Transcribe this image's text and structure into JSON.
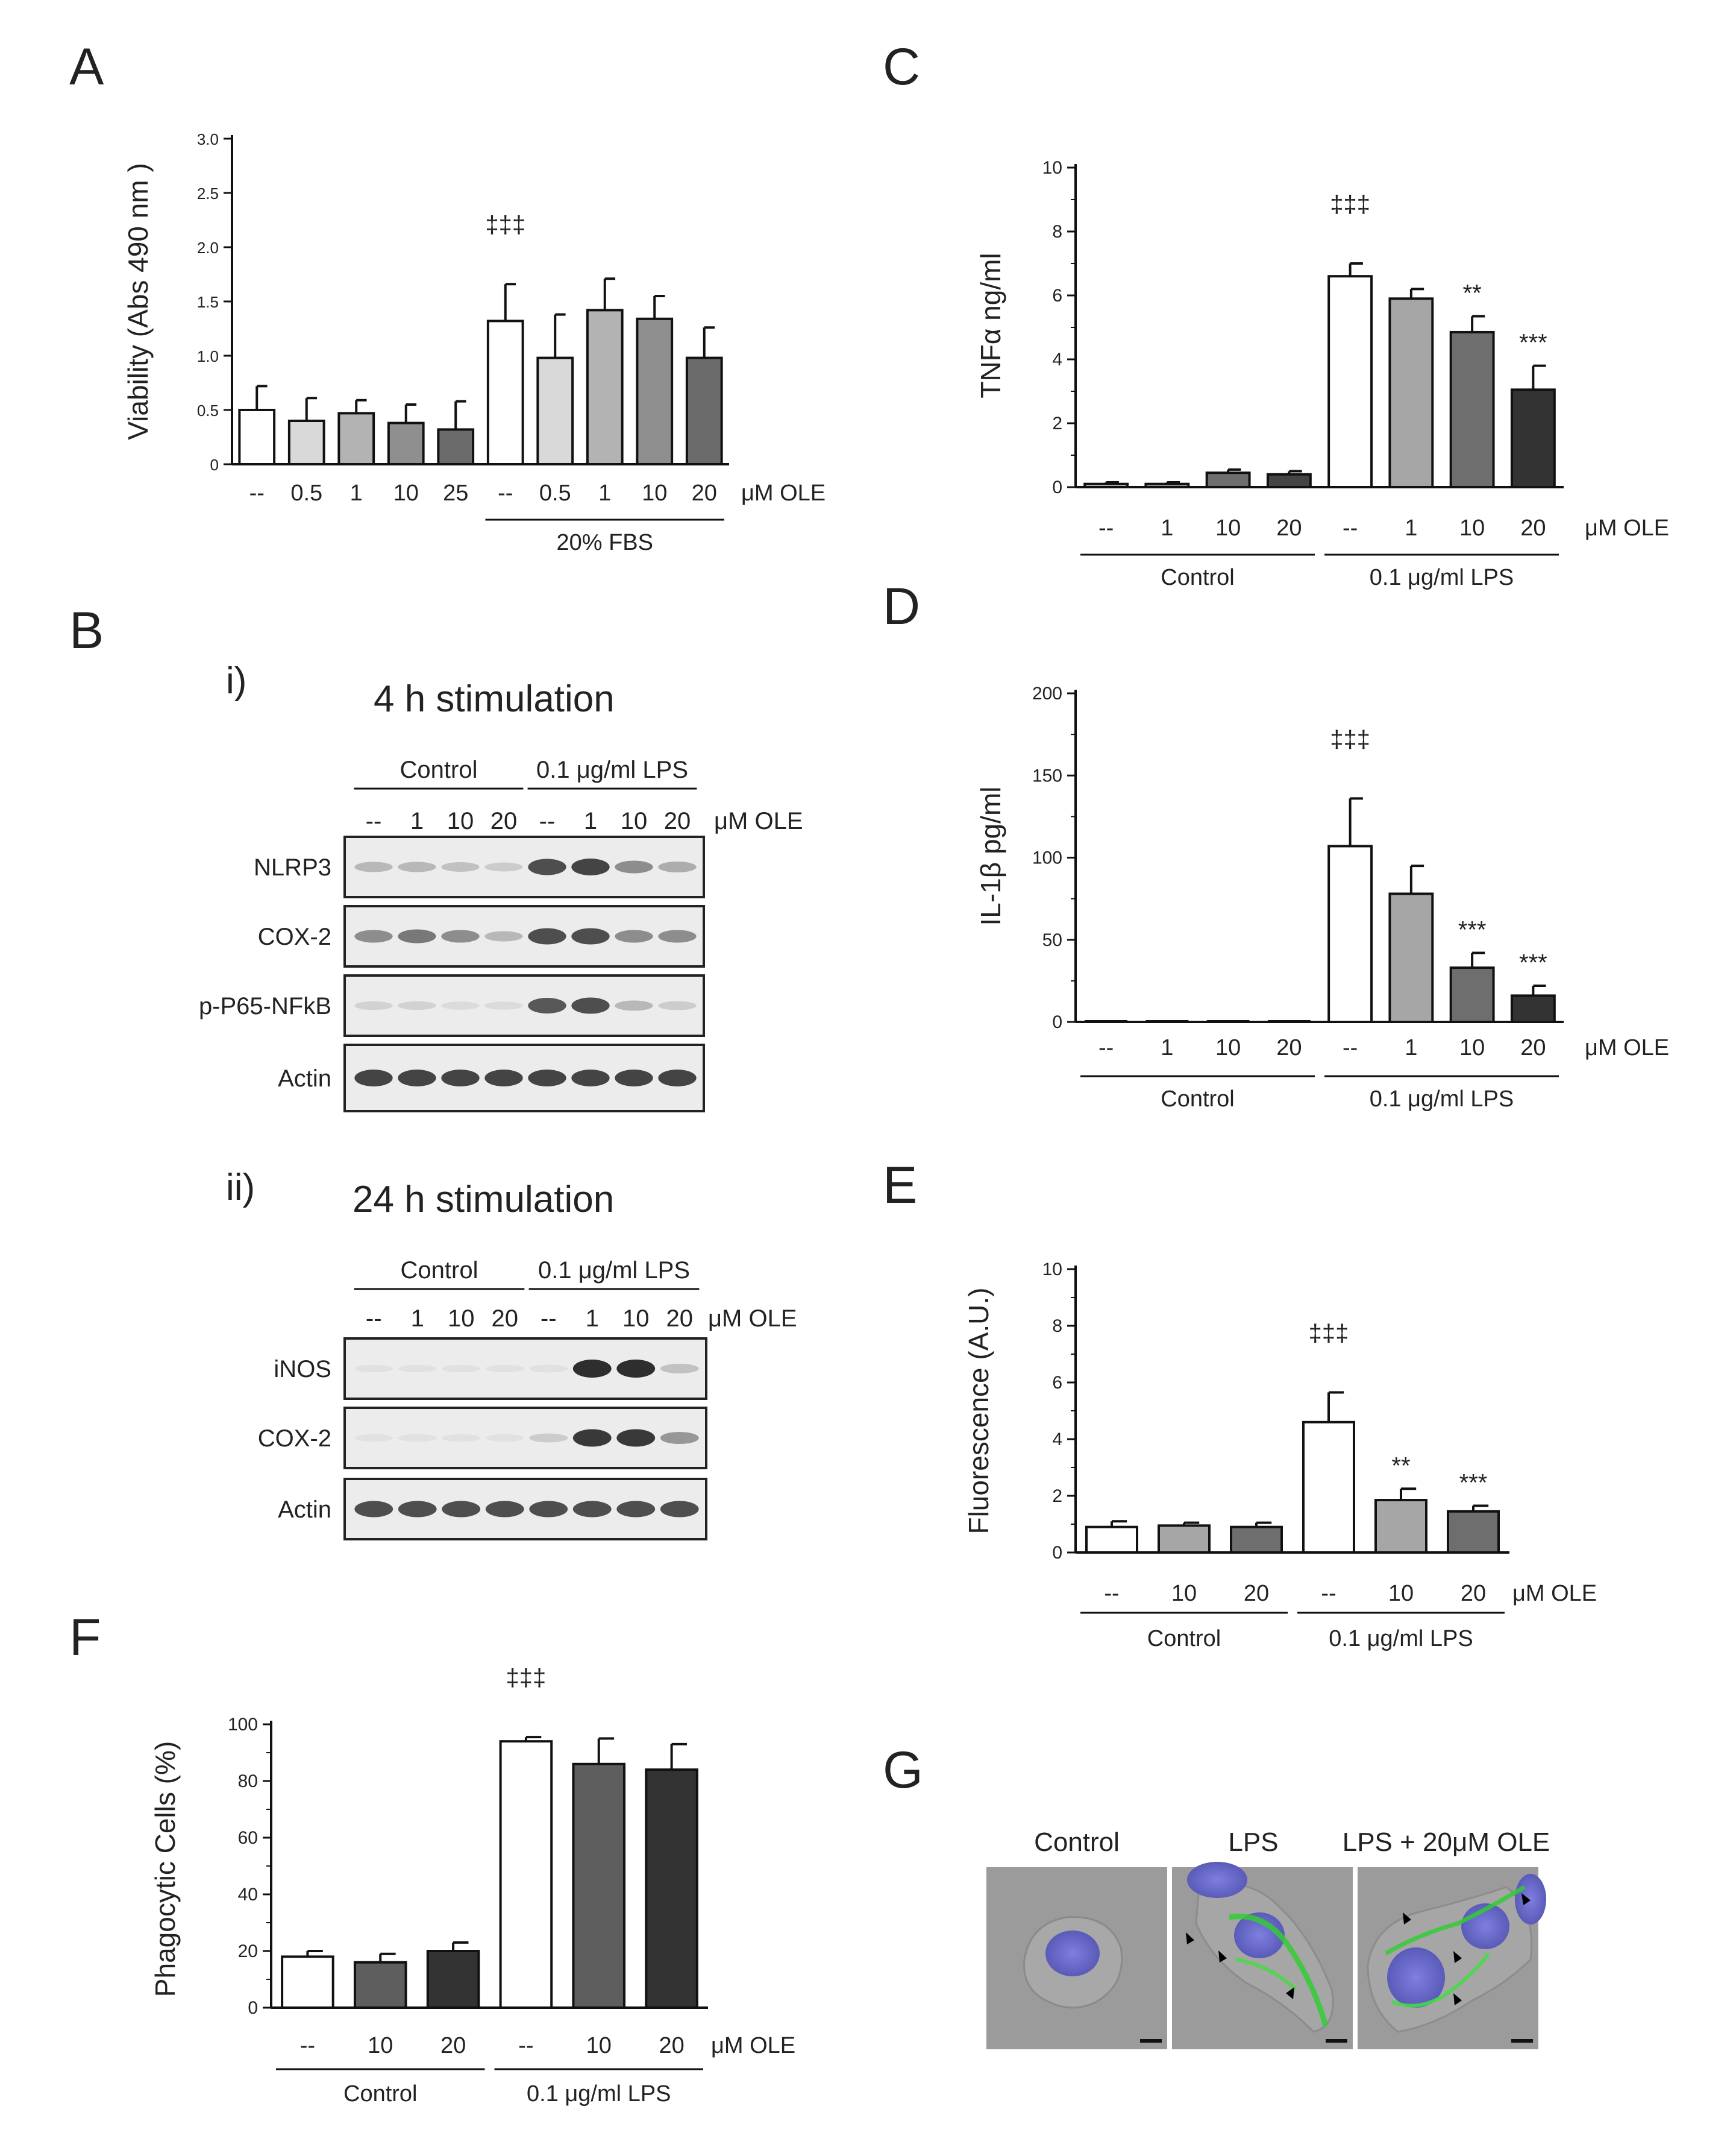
{
  "chart_data": [
    {
      "panel": "A",
      "type": "bar",
      "ylabel": "Viability (Abs 490 nm )",
      "ylim": [
        0,
        3.0
      ],
      "ticks": [
        "0",
        "0.5",
        "1.0",
        "1.5",
        "2.0",
        "2.5",
        "3.0"
      ],
      "categories": [
        "--",
        "0.5",
        "1",
        "10",
        "25",
        "--",
        "0.5",
        "1",
        "10",
        "20"
      ],
      "values": [
        0.5,
        0.4,
        0.47,
        0.38,
        0.32,
        1.32,
        0.98,
        1.42,
        1.34,
        0.98
      ],
      "errors": [
        0.22,
        0.21,
        0.12,
        0.17,
        0.26,
        0.34,
        0.4,
        0.29,
        0.21,
        0.28
      ],
      "colors": [
        "#ffffff",
        "#d9d9d9",
        "#b3b3b3",
        "#8f8f8f",
        "#6b6b6b",
        "#ffffff",
        "#d9d9d9",
        "#b3b3b3",
        "#8f8f8f",
        "#6b6b6b"
      ],
      "unit": "μM OLE",
      "groups": [
        {
          "label": "20% FBS"
        }
      ],
      "annotations": [
        {
          "index": 5,
          "text": "‡‡‡"
        }
      ]
    },
    {
      "panel": "C",
      "type": "bar",
      "ylabel": "TNFα ng/ml",
      "ylim": [
        0,
        10
      ],
      "ticks": [
        "0",
        "2",
        "4",
        "6",
        "8",
        "10"
      ],
      "categories": [
        "--",
        "1",
        "10",
        "20",
        "--",
        "1",
        "10",
        "20"
      ],
      "values": [
        0.1,
        0.1,
        0.45,
        0.4,
        6.6,
        5.9,
        4.85,
        3.05
      ],
      "errors": [
        0.05,
        0.05,
        0.1,
        0.1,
        0.4,
        0.3,
        0.5,
        0.75
      ],
      "colors": [
        "#c8c8c8",
        "#a6a6a6",
        "#6e6e6e",
        "#444444",
        "#ffffff",
        "#a6a6a6",
        "#6e6e6e",
        "#333333"
      ],
      "unit": "μM OLE",
      "groups": [
        {
          "label": "Control"
        },
        {
          "label": "0.1 μg/ml LPS"
        }
      ],
      "annotations": [
        {
          "index": 4,
          "text": "‡‡‡"
        },
        {
          "index": 6,
          "text": "**"
        },
        {
          "index": 7,
          "text": "***"
        }
      ]
    },
    {
      "panel": "D",
      "type": "bar",
      "ylabel": "IL-1β pg/ml",
      "ylim": [
        0,
        200
      ],
      "ticks": [
        "0",
        "50",
        "100",
        "150",
        "200"
      ],
      "categories": [
        "--",
        "1",
        "10",
        "20",
        "--",
        "1",
        "10",
        "20"
      ],
      "values": [
        0,
        0,
        0,
        0,
        107,
        78,
        33,
        16
      ],
      "errors": [
        0,
        0,
        0,
        0,
        29,
        17,
        9,
        6
      ],
      "colors": [
        "#ffffff",
        "#a6a6a6",
        "#6e6e6e",
        "#333333",
        "#ffffff",
        "#a6a6a6",
        "#6e6e6e",
        "#333333"
      ],
      "unit": "μM OLE",
      "groups": [
        {
          "label": "Control"
        },
        {
          "label": "0.1 μg/ml LPS"
        }
      ],
      "annotations": [
        {
          "index": 4,
          "text": "‡‡‡"
        },
        {
          "index": 6,
          "text": "***"
        },
        {
          "index": 7,
          "text": "***"
        }
      ]
    },
    {
      "panel": "E",
      "type": "bar",
      "ylabel": "Fluorescence (A.U.)",
      "ylim": [
        0,
        10
      ],
      "ticks": [
        "0",
        "2",
        "4",
        "6",
        "8",
        "10"
      ],
      "categories": [
        "--",
        "10",
        "20",
        "--",
        "10",
        "20"
      ],
      "values": [
        0.9,
        0.95,
        0.9,
        4.6,
        1.85,
        1.45
      ],
      "errors": [
        0.2,
        0.1,
        0.15,
        1.05,
        0.4,
        0.2
      ],
      "colors": [
        "#ffffff",
        "#a6a6a6",
        "#6e6e6e",
        "#ffffff",
        "#a6a6a6",
        "#6e6e6e"
      ],
      "unit": "μM OLE",
      "groups": [
        {
          "label": "Control"
        },
        {
          "label": "0.1 μg/ml LPS"
        }
      ],
      "annotations": [
        {
          "index": 3,
          "text": "‡‡‡"
        },
        {
          "index": 4,
          "text": "**"
        },
        {
          "index": 5,
          "text": "***"
        }
      ]
    },
    {
      "panel": "F",
      "type": "bar",
      "ylabel": "Phagocytic Cells (%)",
      "ylim": [
        0,
        100
      ],
      "ticks": [
        "0",
        "20",
        "40",
        "60",
        "80",
        "100"
      ],
      "categories": [
        "--",
        "10",
        "20",
        "--",
        "10",
        "20"
      ],
      "values": [
        18,
        16,
        20,
        94,
        86,
        84
      ],
      "errors": [
        2,
        3,
        3,
        1.5,
        9,
        9
      ],
      "colors": [
        "#ffffff",
        "#5e5e5e",
        "#333333",
        "#ffffff",
        "#5e5e5e",
        "#333333"
      ],
      "unit": "μM OLE",
      "groups": [
        {
          "label": "Control"
        },
        {
          "label": "0.1 μg/ml LPS"
        }
      ],
      "annotations": [
        {
          "index": 3,
          "text": "‡‡‡"
        }
      ]
    }
  ],
  "panel_letters": {
    "a": "A",
    "b": "B",
    "c": "C",
    "d": "D",
    "e": "E",
    "f": "F",
    "g": "G"
  },
  "blots": [
    {
      "id": "i",
      "roman": "i)",
      "title": "4 h stimulation",
      "control_label": "Control",
      "lps_label": "0.1 μg/ml LPS",
      "lanes": [
        "--",
        "1",
        "10",
        "20",
        "--",
        "1",
        "10",
        "20"
      ],
      "unit": "μM OLE",
      "rows": [
        {
          "label": "NLRP3",
          "intensity": [
            0.25,
            0.25,
            0.2,
            0.15,
            0.75,
            0.8,
            0.45,
            0.3
          ]
        },
        {
          "label": "COX-2",
          "intensity": [
            0.45,
            0.55,
            0.45,
            0.25,
            0.75,
            0.75,
            0.45,
            0.45
          ]
        },
        {
          "label": "p-P65-NFkB",
          "intensity": [
            0.12,
            0.12,
            0.08,
            0.08,
            0.7,
            0.75,
            0.25,
            0.15
          ]
        },
        {
          "label": "Actin",
          "intensity": [
            0.8,
            0.8,
            0.8,
            0.8,
            0.8,
            0.8,
            0.8,
            0.8
          ]
        }
      ]
    },
    {
      "id": "ii",
      "roman": "ii)",
      "title": "24 h stimulation",
      "control_label": "Control",
      "lps_label": "0.1 μg/ml LPS",
      "lanes": [
        "--",
        "1",
        "10",
        "20",
        "--",
        "1",
        "10",
        "20"
      ],
      "unit": "μM OLE",
      "rows": [
        {
          "label": "iNOS",
          "intensity": [
            0.02,
            0.02,
            0.02,
            0.02,
            0.05,
            0.9,
            0.9,
            0.2
          ]
        },
        {
          "label": "COX-2",
          "intensity": [
            0.02,
            0.02,
            0.02,
            0.02,
            0.15,
            0.85,
            0.85,
            0.4
          ]
        },
        {
          "label": "Actin",
          "intensity": [
            0.75,
            0.75,
            0.75,
            0.75,
            0.75,
            0.75,
            0.75,
            0.75
          ]
        }
      ]
    }
  ],
  "micrographs": {
    "titles": [
      "Control",
      "LPS",
      "LPS + 20μM OLE"
    ]
  }
}
